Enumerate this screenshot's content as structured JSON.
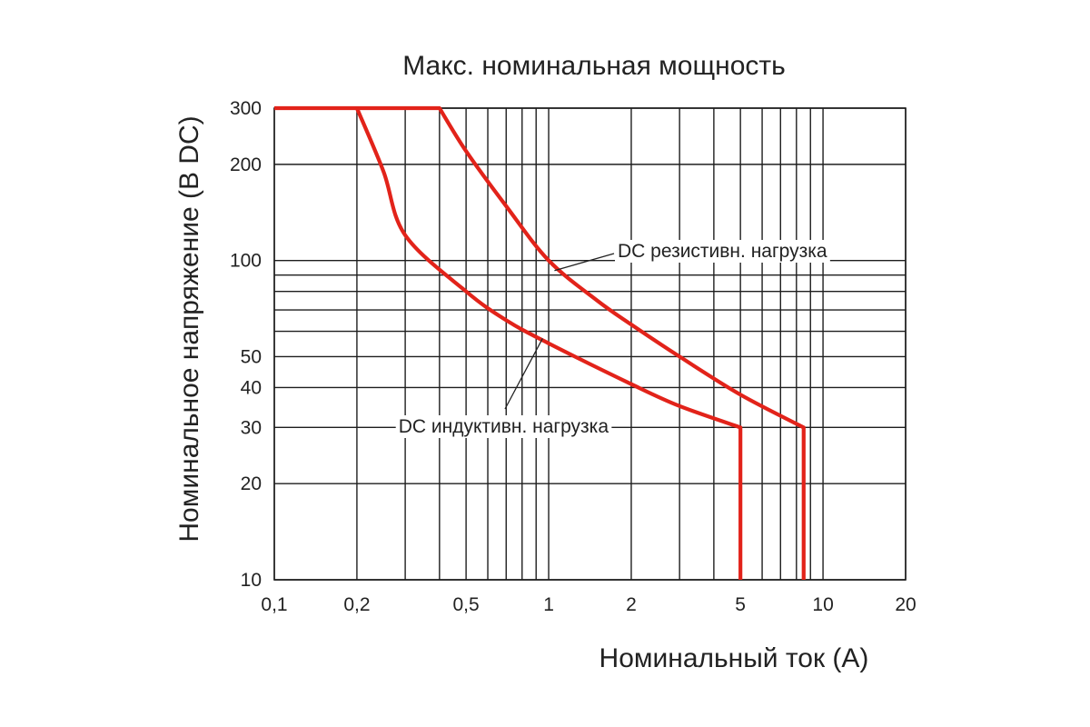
{
  "chart_data": {
    "type": "line",
    "title": "Макс. номинальная мощность",
    "xlabel": "Номинальный ток (А)",
    "ylabel": "Номинальное напряжение (В DC)",
    "x_scale": "log",
    "y_scale": "log",
    "xlim": [
      0.1,
      20
    ],
    "ylim": [
      10,
      300
    ],
    "x_ticks": [
      {
        "value": 0.1,
        "label": "0,1"
      },
      {
        "value": 0.2,
        "label": "0,2"
      },
      {
        "value": 0.5,
        "label": "0,5"
      },
      {
        "value": 1,
        "label": "1"
      },
      {
        "value": 2,
        "label": "2"
      },
      {
        "value": 5,
        "label": "5"
      },
      {
        "value": 10,
        "label": "10"
      },
      {
        "value": 20,
        "label": "20"
      }
    ],
    "y_ticks": [
      {
        "value": 10,
        "label": "10"
      },
      {
        "value": 20,
        "label": "20"
      },
      {
        "value": 30,
        "label": "30"
      },
      {
        "value": 40,
        "label": "40"
      },
      {
        "value": 50,
        "label": "50"
      },
      {
        "value": 100,
        "label": "100"
      },
      {
        "value": 200,
        "label": "200"
      },
      {
        "value": 300,
        "label": "300"
      }
    ],
    "x_gridlines": [
      0.1,
      0.2,
      0.3,
      0.4,
      0.5,
      0.6,
      0.7,
      0.8,
      0.9,
      1,
      2,
      3,
      4,
      5,
      6,
      7,
      8,
      9,
      10,
      20
    ],
    "y_gridlines": [
      10,
      20,
      30,
      40,
      50,
      60,
      70,
      80,
      90,
      100,
      200,
      300
    ],
    "grid": true,
    "legend": "none",
    "series": [
      {
        "name": "DC резистивн. нагрузка",
        "color": "#e2231a",
        "x": [
          0.1,
          0.4,
          0.5,
          0.7,
          1,
          1.5,
          2,
          3,
          5,
          8.5,
          8.5
        ],
        "y": [
          300,
          300,
          220,
          148,
          100,
          75,
          63,
          50,
          38,
          30,
          10
        ]
      },
      {
        "name": "DC индуктивн. нагрузка",
        "color": "#e2231a",
        "x": [
          0.2,
          0.25,
          0.3,
          0.5,
          0.7,
          1,
          2,
          3,
          5,
          5
        ],
        "y": [
          300,
          190,
          120,
          80,
          65,
          55,
          41,
          35,
          30,
          10
        ]
      }
    ],
    "annotations": [
      {
        "text": "DC резистивн. нагрузка",
        "points_to": {
          "x": 1.05,
          "y": 93
        }
      },
      {
        "text": "DC индуктивн. нагрузка",
        "points_to": {
          "x": 0.95,
          "y": 57
        }
      }
    ]
  }
}
